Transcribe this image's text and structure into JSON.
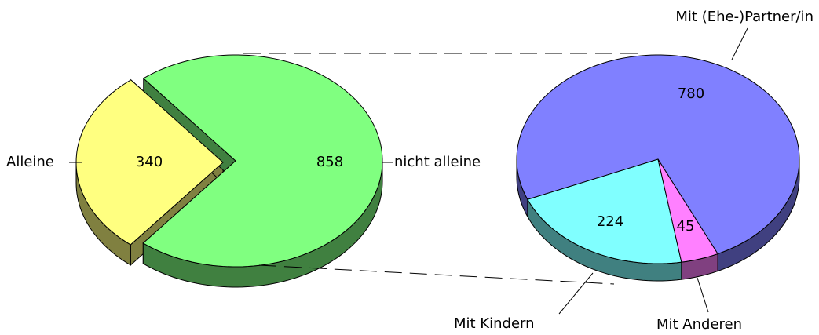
{
  "chart_data": [
    {
      "type": "pie",
      "categories": [
        "Alleine",
        "nicht alleine"
      ],
      "values": [
        340,
        858
      ],
      "colors": [
        "#ffff80",
        "#80ff80"
      ]
    },
    {
      "type": "pie",
      "categories": [
        "Mit (Ehe-)Partner/in",
        "Mit Kindern",
        "Mit Anderen"
      ],
      "values": [
        780,
        224,
        45
      ],
      "colors": [
        "#8080ff",
        "#80ffff",
        "#ff80ff"
      ]
    }
  ]
}
